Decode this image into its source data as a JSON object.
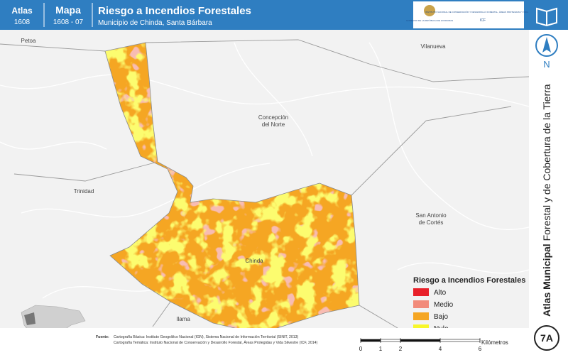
{
  "header": {
    "atlas_label": "Atlas",
    "atlas_number": "1608",
    "map_label": "Mapa",
    "map_number": "1608 - 07",
    "title": "Riesgo a Incendios Forestales",
    "subtitle": "Municipio de Chinda, Santa Bárbara"
  },
  "logos": {
    "government": "GOBIERNO DE LA REPÚBLICA DE HONDURAS",
    "institute": "INSTITUTO NACIONAL DE CONSERVACIÓN Y DESARROLLO FORESTAL, ÁREAS PROTEGIDAS Y VIDA SILVESTRE",
    "acronym": "ICF"
  },
  "places": [
    {
      "lines": [
        "Petoa"
      ]
    },
    {
      "lines": [
        "Vilanueva"
      ]
    },
    {
      "lines": [
        "Concepción",
        "del Norte"
      ]
    },
    {
      "lines": [
        "Trinidad"
      ]
    },
    {
      "lines": [
        "San Antonio",
        "de Cortés"
      ]
    },
    {
      "lines": [
        "Chinda"
      ]
    },
    {
      "lines": [
        "Ilama"
      ]
    }
  ],
  "legend": {
    "title": "Riesgo a Incendios Forestales",
    "items": [
      {
        "label": "Alto",
        "color": "#e8202a"
      },
      {
        "label": "Medio",
        "color": "#f28b7a"
      },
      {
        "label": "Bajo",
        "color": "#f5a623"
      },
      {
        "label": "Nulo",
        "color": "#f7f72a"
      }
    ]
  },
  "sources": {
    "label": "Fuente:",
    "lines": [
      "Cartografía Básica: Instituto Geográfico Nacional (IGN), Sistema Nacional de Información Territorial (SINIT, 2013)",
      "Cartografía Temática: Instituto Nacional de Conservación y Desarrollo Forestal, Áreas Protegidas y Vida Silvestre (ICF, 2014)"
    ]
  },
  "scale_bar": {
    "ticks": [
      0,
      1,
      2,
      4,
      6
    ],
    "unit": "Kilómetros"
  },
  "side": {
    "title_bold": "Atlas Municipal",
    "title_rest": "Forestal y de Cobertura de la Tierra",
    "north": "N",
    "sheet": "7A"
  }
}
